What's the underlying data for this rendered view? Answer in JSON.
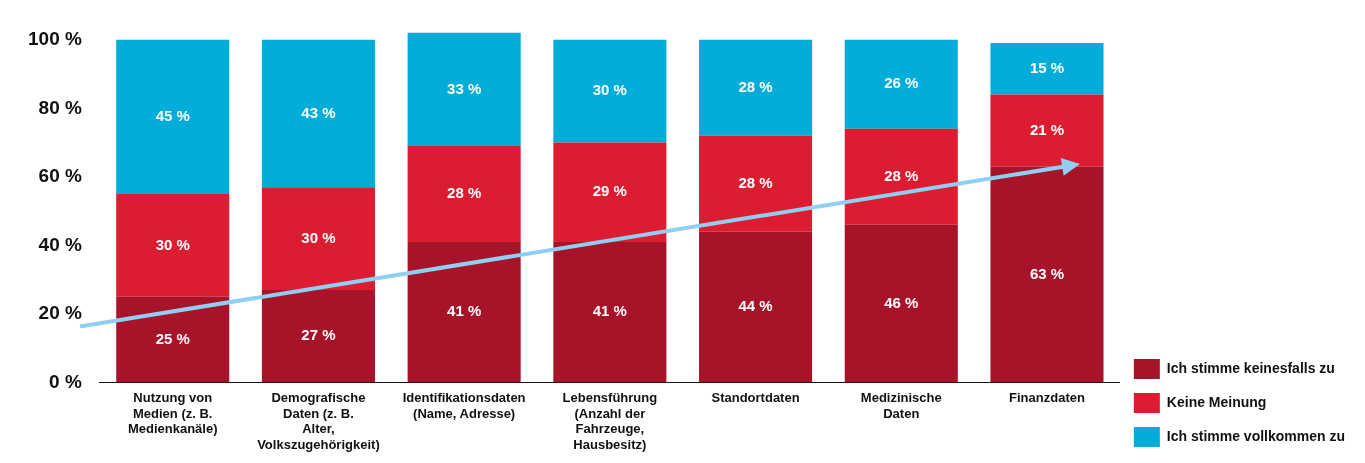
{
  "chart_data": {
    "type": "bar",
    "stacked": true,
    "categories": [
      "Nutzung von Medien (z. B. Medienkanäle)",
      "Demografische Daten (z. B. Alter, Volkszugehörigkeit)",
      "Identifikationsdaten (Name, Adresse)",
      "Lebensführung (Anzahl der Fahrzeuge, Hausbesitz)",
      "Standortdaten",
      "Medizinische Daten",
      "Finanzdaten"
    ],
    "series": [
      {
        "name": "Ich stimme keinesfalls zu",
        "color": "#a71429",
        "values": [
          25,
          27,
          41,
          41,
          44,
          46,
          63
        ],
        "value_labels": [
          "25 %",
          "27 %",
          "41 %",
          "41 %",
          "44 %",
          "46 %",
          "63 %"
        ]
      },
      {
        "name": "Keine Meinung",
        "color": "#dc1c30",
        "values": [
          30,
          30,
          28,
          29,
          28,
          28,
          21
        ],
        "value_labels": [
          "30 %",
          "30 %",
          "28 %",
          "29 %",
          "28 %",
          "28 %",
          "21 %"
        ]
      },
      {
        "name": "Ich stimme vollkommen zu",
        "color": "#00acd8",
        "values": [
          45,
          43,
          33,
          30,
          28,
          26,
          15
        ],
        "value_labels": [
          "45 %",
          "43 %",
          "33 %",
          "30 %",
          "28 %",
          "26 %",
          "15 %"
        ]
      }
    ],
    "ylim": [
      0,
      103
    ],
    "yticks": [
      {
        "value": 0,
        "label": "0 %"
      },
      {
        "value": 20,
        "label": "20 %"
      },
      {
        "value": 40,
        "label": "40 %"
      },
      {
        "value": 60,
        "label": "60 %"
      },
      {
        "value": 80,
        "label": "80 %"
      },
      {
        "value": 100,
        "label": "100 %"
      }
    ],
    "grid": false,
    "legend": "right"
  }
}
